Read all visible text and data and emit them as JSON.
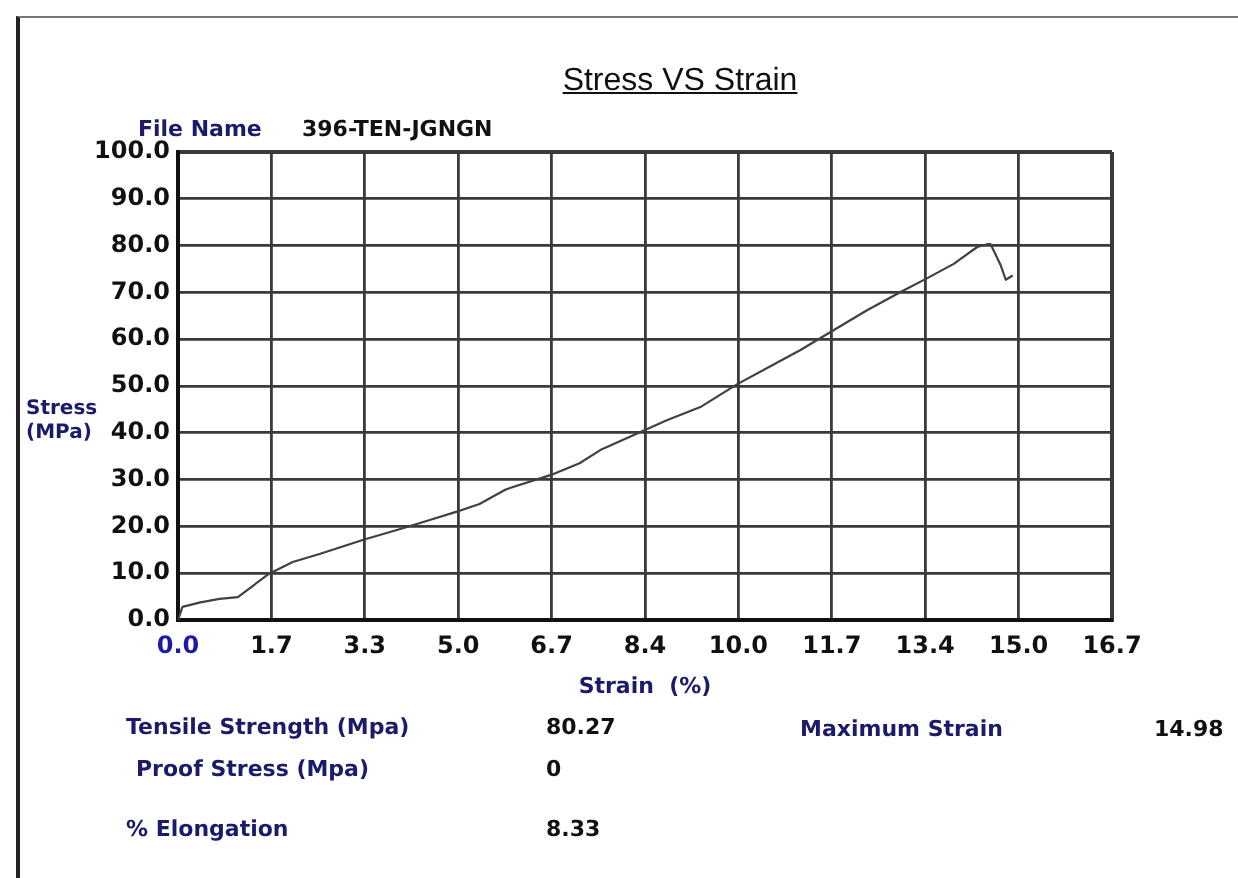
{
  "chart_data": {
    "type": "line",
    "title": "Stress VS Strain",
    "xlabel": "Strain  (%)",
    "ylabel": "Stress (MPa)",
    "annotations": [
      "File Name",
      "396-TEN-JGNGN",
      "Tensile Strength (Mpa)",
      "80.27",
      "Maximum Strain",
      "14.98",
      "Proof Stress (Mpa)",
      "0",
      "% Elongation",
      "8.33"
    ],
    "x": [
      0,
      0.08,
      0.38,
      0.74,
      1.07,
      1.63,
      2.05,
      2.53,
      3.33,
      3.96,
      4.43,
      5.0,
      5.39,
      5.86,
      6.67,
      7.18,
      7.55,
      8.35,
      8.74,
      9.34,
      10.0,
      10.65,
      11.13,
      11.69,
      12.32,
      12.92,
      13.39,
      13.87,
      14.29,
      14.47,
      14.53,
      14.71,
      14.8,
      14.91
    ],
    "series": [
      {
        "color": "#404040",
        "values": [
          0,
          2.8,
          3.7,
          4.5,
          4.9,
          9.9,
          12.4,
          14.1,
          17.2,
          19.4,
          21.1,
          23.2,
          24.8,
          27.9,
          31.0,
          33.5,
          36.3,
          40.6,
          42.7,
          45.5,
          50.4,
          54.6,
          57.7,
          61.7,
          66.2,
          70.1,
          73.0,
          76.1,
          79.7,
          80.3,
          80.3,
          75.8,
          72.7,
          73.5
        ]
      }
    ],
    "xlim": [
      0,
      16.7
    ],
    "ylim": [
      0,
      100
    ],
    "xticks": [
      {
        "value": 0,
        "label": "0.0"
      },
      {
        "value": 1.67,
        "label": "1.7"
      },
      {
        "value": 3.34,
        "label": "3.3"
      },
      {
        "value": 5.01,
        "label": "5.0"
      },
      {
        "value": 6.68,
        "label": "6.7"
      },
      {
        "value": 8.35,
        "label": "8.4"
      },
      {
        "value": 10.02,
        "label": "10.0"
      },
      {
        "value": 11.69,
        "label": "11.7"
      },
      {
        "value": 13.36,
        "label": "13.4"
      },
      {
        "value": 15.03,
        "label": "15.0"
      },
      16.7
    ],
    "yticks": [
      {
        "value": 0,
        "label": "0.0"
      },
      {
        "value": 10,
        "label": "10.0"
      },
      {
        "value": 20,
        "label": "20.0"
      },
      {
        "value": 30,
        "label": "30.0"
      },
      {
        "value": 40,
        "label": "40.0"
      },
      {
        "value": 50,
        "label": "50.0"
      },
      {
        "value": 60,
        "label": "60.0"
      },
      {
        "value": 70,
        "label": "70.0"
      },
      {
        "value": 80,
        "label": "80.0"
      },
      {
        "value": 90,
        "label": "90.0"
      },
      {
        "value": 100,
        "label": "100.0"
      }
    ],
    "grid": true,
    "line_style": "solid"
  }
}
